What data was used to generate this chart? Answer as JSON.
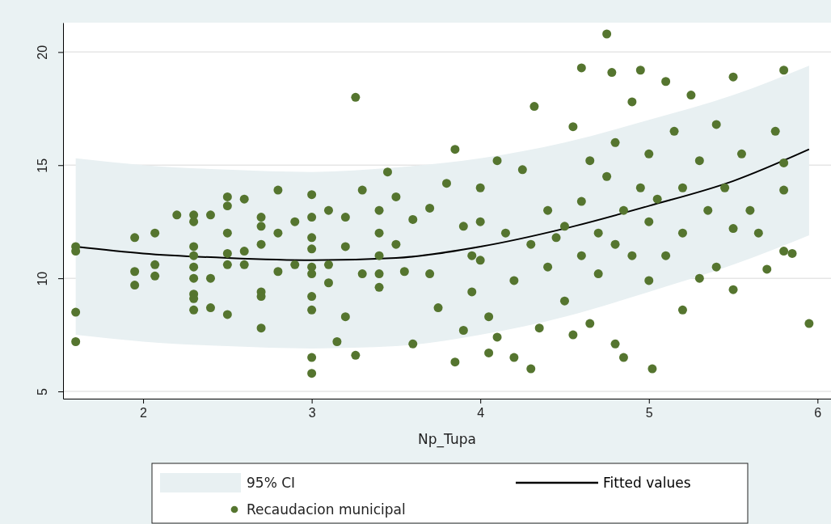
{
  "chart_data": {
    "type": "scatter",
    "xlabel": "Np_Tupa",
    "xlim": [
      1.525,
      6.08
    ],
    "ylim": [
      4.68,
      21.3
    ],
    "xticks": [
      2,
      3,
      4,
      5,
      6
    ],
    "yticks": [
      5,
      10,
      15,
      20
    ],
    "grid": "y",
    "legend": "bottom",
    "annotations": [
      "95% CI"
    ],
    "series": [
      {
        "name": "Fitted values",
        "type": "line",
        "color": "#000000",
        "line_style": "solid",
        "x": [
          1.6,
          2.0,
          2.5,
          3.0,
          3.5,
          4.0,
          4.5,
          5.0,
          5.5,
          5.95
        ],
        "values": [
          11.4,
          11.1,
          10.9,
          10.8,
          10.9,
          11.4,
          12.2,
          13.2,
          14.3,
          15.7
        ],
        "lower": [
          7.5,
          7.2,
          7.0,
          6.9,
          7.0,
          7.5,
          8.3,
          9.4,
          10.6,
          11.9
        ],
        "upper": [
          15.3,
          15.0,
          14.8,
          14.7,
          14.9,
          15.3,
          16.0,
          17.0,
          18.1,
          19.4
        ]
      },
      {
        "name": "Recaudacion municipal",
        "marker": "circle",
        "color": "#55752f",
        "x": [
          1.6,
          1.6,
          1.6,
          1.6,
          1.95,
          1.95,
          1.95,
          2.07,
          2.07,
          2.07,
          2.2,
          2.3,
          2.3,
          2.3,
          2.3,
          2.3,
          2.3,
          2.3,
          2.3,
          2.3,
          2.4,
          2.4,
          2.4,
          2.5,
          2.5,
          2.5,
          2.5,
          2.5,
          2.5,
          2.6,
          2.6,
          2.6,
          2.7,
          2.7,
          2.7,
          2.7,
          2.7,
          2.7,
          2.8,
          2.8,
          2.8,
          2.9,
          2.9,
          3.0,
          3.0,
          3.0,
          3.0,
          3.0,
          3.0,
          3.0,
          3.0,
          3.0,
          3.0,
          3.1,
          3.1,
          3.1,
          3.15,
          3.2,
          3.2,
          3.2,
          3.26,
          3.26,
          3.3,
          3.3,
          3.4,
          3.4,
          3.4,
          3.4,
          3.4,
          3.45,
          3.5,
          3.5,
          3.55,
          3.6,
          3.6,
          3.7,
          3.7,
          3.75,
          3.8,
          3.85,
          3.85,
          3.9,
          3.9,
          3.95,
          3.95,
          4.0,
          4.0,
          4.0,
          4.05,
          4.05,
          4.1,
          4.1,
          4.15,
          4.2,
          4.2,
          4.25,
          4.3,
          4.3,
          4.32,
          4.35,
          4.4,
          4.4,
          4.45,
          4.5,
          4.5,
          4.55,
          4.55,
          4.6,
          4.6,
          4.6,
          4.65,
          4.65,
          4.7,
          4.7,
          4.75,
          4.75,
          4.78,
          4.8,
          4.8,
          4.8,
          4.85,
          4.85,
          4.9,
          4.9,
          4.95,
          4.95,
          5.0,
          5.0,
          5.0,
          5.02,
          5.05,
          5.1,
          5.1,
          5.15,
          5.2,
          5.2,
          5.2,
          5.25,
          5.3,
          5.3,
          5.35,
          5.4,
          5.4,
          5.45,
          5.5,
          5.5,
          5.5,
          5.55,
          5.6,
          5.65,
          5.7,
          5.75,
          5.8,
          5.8,
          5.8,
          5.8,
          5.85,
          5.95
        ],
        "values": [
          11.4,
          11.2,
          8.5,
          7.2,
          11.8,
          10.3,
          9.7,
          12.0,
          10.6,
          10.1,
          12.8,
          12.8,
          12.5,
          11.4,
          11.0,
          10.5,
          10.0,
          9.3,
          9.1,
          8.6,
          12.8,
          10.0,
          8.7,
          13.6,
          13.2,
          12.0,
          11.1,
          10.6,
          8.4,
          13.5,
          11.2,
          10.6,
          12.7,
          12.3,
          11.5,
          9.4,
          9.2,
          7.8,
          13.9,
          12.0,
          10.3,
          12.5,
          10.6,
          13.7,
          12.7,
          11.8,
          11.3,
          10.5,
          10.2,
          9.2,
          8.6,
          6.5,
          5.8,
          13.0,
          10.6,
          9.8,
          7.2,
          12.7,
          11.4,
          8.3,
          18.0,
          6.6,
          13.9,
          10.2,
          13.0,
          12.0,
          11.0,
          10.2,
          9.6,
          14.7,
          13.6,
          11.5,
          10.3,
          7.1,
          12.6,
          13.1,
          10.2,
          8.7,
          14.2,
          15.7,
          6.3,
          7.7,
          12.3,
          11.0,
          9.4,
          14.0,
          12.5,
          10.8,
          6.7,
          8.3,
          15.2,
          7.4,
          12.0,
          6.5,
          9.9,
          14.8,
          11.5,
          6.0,
          17.6,
          7.8,
          13.0,
          10.5,
          11.8,
          12.3,
          9.0,
          16.7,
          7.5,
          19.3,
          13.4,
          11.0,
          15.2,
          8.0,
          12.0,
          10.2,
          20.8,
          14.5,
          19.1,
          16.0,
          11.5,
          7.1,
          13.0,
          6.5,
          17.8,
          11.0,
          19.2,
          14.0,
          15.5,
          12.5,
          9.9,
          6.0,
          13.5,
          18.7,
          11.0,
          16.5,
          14.0,
          12.0,
          8.6,
          18.1,
          15.2,
          10.0,
          13.0,
          16.8,
          10.5,
          14.0,
          18.9,
          12.2,
          9.5,
          15.5,
          13.0,
          12.0,
          10.4,
          16.5,
          19.2,
          15.1,
          13.9,
          11.2,
          11.1,
          8.0
        ]
      }
    ]
  }
}
